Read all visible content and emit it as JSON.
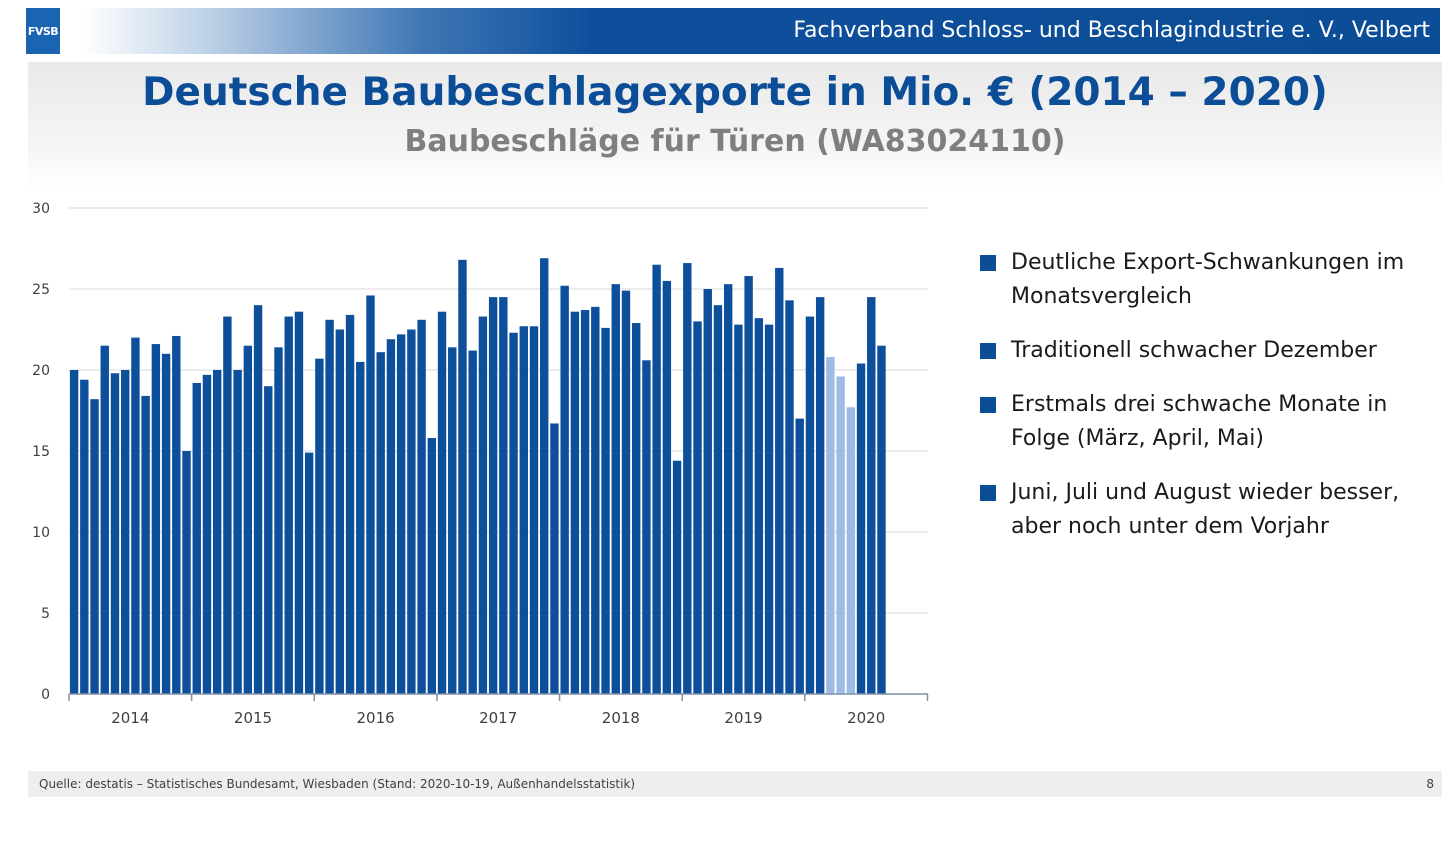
{
  "header": {
    "logo_text": "FVSB",
    "organization": "Fachverband Schloss- und Beschlagindustrie e. V., Velbert"
  },
  "title": "Deutsche Baubeschlagexporte in Mio. € (2014 – 2020)",
  "subtitle": "Baubeschläge für Türen (WA83024110)",
  "colors": {
    "accent": "#0c4d97",
    "bar": "#0e4f9c",
    "bar_highlight": "#9dbbe3",
    "grid": "#d9d9d9"
  },
  "chart_data": {
    "type": "bar",
    "title": "",
    "xlabel": "",
    "ylabel": "",
    "ylim": [
      0,
      30
    ],
    "yticks": [
      0,
      5,
      10,
      15,
      20,
      25,
      30
    ],
    "grid": true,
    "year_labels": [
      "2014",
      "2015",
      "2016",
      "2017",
      "2018",
      "2019",
      "2020"
    ],
    "months_per_year": 12,
    "highlighted_months_2020": [
      "März",
      "April",
      "Mai"
    ],
    "series": [
      {
        "year": "2014",
        "values": [
          20.0,
          19.4,
          18.2,
          21.5,
          19.8,
          20.0,
          22.0,
          18.4,
          21.6,
          21.0,
          22.1,
          15.0
        ]
      },
      {
        "year": "2015",
        "values": [
          19.2,
          19.7,
          20.0,
          23.3,
          20.0,
          21.5,
          24.0,
          19.0,
          21.4,
          23.3,
          23.6,
          14.9
        ]
      },
      {
        "year": "2016",
        "values": [
          20.7,
          23.1,
          22.5,
          23.4,
          20.5,
          24.6,
          21.1,
          21.9,
          22.2,
          22.5,
          23.1,
          15.8
        ]
      },
      {
        "year": "2017",
        "values": [
          23.6,
          21.4,
          26.8,
          21.2,
          23.3,
          24.5,
          24.5,
          22.3,
          22.7,
          22.7,
          26.9,
          16.7
        ]
      },
      {
        "year": "2018",
        "values": [
          25.2,
          23.6,
          23.7,
          23.9,
          22.6,
          25.3,
          24.9,
          22.9,
          20.6,
          26.5,
          25.5,
          14.4
        ]
      },
      {
        "year": "2019",
        "values": [
          26.6,
          23.0,
          25.0,
          24.0,
          25.3,
          22.8,
          25.8,
          23.2,
          22.8,
          26.3,
          24.3,
          17.0
        ]
      },
      {
        "year": "2020",
        "values": [
          23.3,
          24.5,
          20.8,
          19.6,
          17.7,
          20.4,
          24.5,
          21.5
        ]
      }
    ]
  },
  "bullets": [
    "Deutliche Export-Schwankungen im Monatsvergleich",
    "Traditionell schwacher Dezember",
    "Erstmals drei schwache Monate in Folge (März, April, Mai)",
    "Juni, Juli und August wieder besser, aber noch unter dem Vorjahr"
  ],
  "footer": {
    "source": "Quelle:  destatis – Statistisches Bundesamt, Wiesbaden  (Stand: 2020-10-19, Außenhandelsstatistik)",
    "page_number": "8"
  }
}
